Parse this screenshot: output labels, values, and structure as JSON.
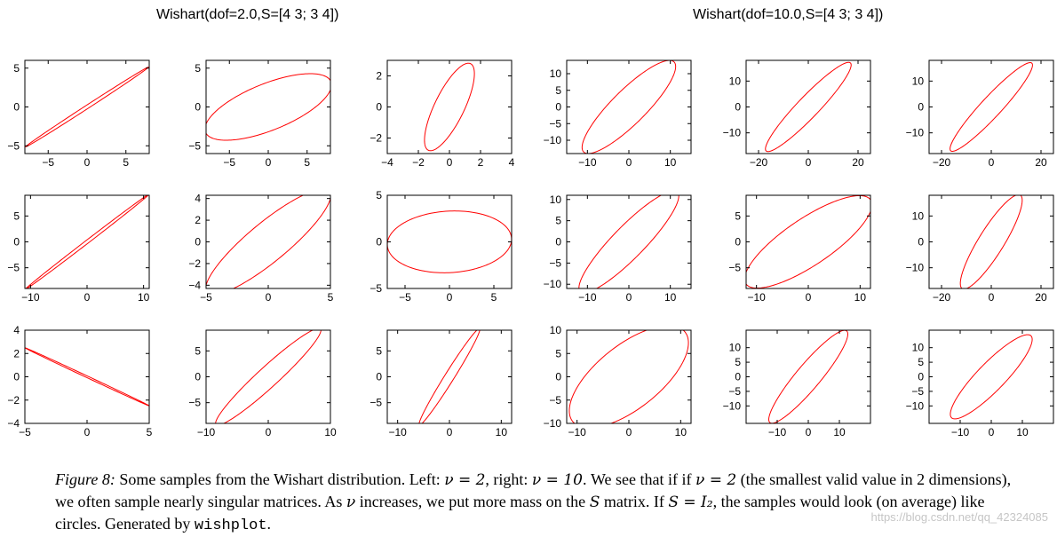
{
  "titles": {
    "left": "Wishart(dof=2.0,S=[4 3; 3 4])",
    "right": "Wishart(dof=10.0,S=[4 3; 3 4])"
  },
  "caption": {
    "label": "Figure 8:",
    "p1": " Some samples from the Wishart distribution. Left: ",
    "m1": "ν = 2",
    "p2": ", right: ",
    "m2": "ν = 10",
    "p3": ". We see that if if ",
    "m3": "ν = 2",
    "p4": " (the smallest valid value in 2 dimensions), we often sample nearly singular matrices. As ",
    "m4": "ν",
    "p5": " increases, we put more mass on the ",
    "m5": "S",
    "p6": " matrix. If ",
    "m6": "S = I₂",
    "p7": ", the samples would look (on average) like circles. Generated by ",
    "code": "wishplot",
    "p8": "."
  },
  "watermark": "https://blog.csdn.net/qq_42324085",
  "style": {
    "curve_color": "#ff0000",
    "axis_color": "#000000"
  },
  "chart_data": [
    {
      "type": "line",
      "name": "r1c1",
      "xlim": [
        -8,
        8
      ],
      "ylim": [
        -6,
        6
      ],
      "xticks": [
        -5,
        0,
        5
      ],
      "yticks": [
        -5,
        0,
        5
      ],
      "ellipse": {
        "a": 9.4,
        "b": 0.22,
        "angle_deg": 33
      }
    },
    {
      "type": "line",
      "name": "r1c2",
      "xlim": [
        -8,
        8
      ],
      "ylim": [
        -6,
        6
      ],
      "xticks": [
        -5,
        0,
        5
      ],
      "yticks": [
        -5,
        0,
        5
      ],
      "ellipse": {
        "a": 8.7,
        "b": 3.0,
        "angle_deg": 22
      }
    },
    {
      "type": "line",
      "name": "r1c3",
      "xlim": [
        -4,
        4
      ],
      "ylim": [
        -3,
        3
      ],
      "xticks": [
        -4,
        -2,
        0,
        2,
        4
      ],
      "yticks": [
        -2,
        0,
        2
      ],
      "ellipse": {
        "a": 3.1,
        "b": 0.95,
        "angle_deg": 64
      }
    },
    {
      "type": "line",
      "name": "r1c4",
      "xlim": [
        -15,
        15
      ],
      "ylim": [
        -14,
        14
      ],
      "xticks": [
        -10,
        0,
        10
      ],
      "yticks": [
        -10,
        -5,
        0,
        5,
        10
      ],
      "ellipse": {
        "a": 17.4,
        "b": 4.5,
        "angle_deg": 52
      }
    },
    {
      "type": "line",
      "name": "r1c5",
      "xlim": [
        -25,
        25
      ],
      "ylim": [
        -18,
        18
      ],
      "xticks": [
        -20,
        0,
        20
      ],
      "yticks": [
        -10,
        0,
        10
      ],
      "ellipse": {
        "a": 24.0,
        "b": 4.2,
        "angle_deg": 45
      }
    },
    {
      "type": "line",
      "name": "r1c6",
      "xlim": [
        -25,
        25
      ],
      "ylim": [
        -18,
        18
      ],
      "xticks": [
        -20,
        0,
        20
      ],
      "yticks": [
        -10,
        0,
        10
      ],
      "ellipse": {
        "a": 23.5,
        "b": 4.0,
        "angle_deg": 46
      }
    },
    {
      "type": "line",
      "name": "r2c1",
      "xlim": [
        -11,
        11
      ],
      "ylim": [
        -9,
        9
      ],
      "xticks": [
        -10,
        0,
        10
      ],
      "yticks": [
        -5,
        0,
        5
      ],
      "ellipse": {
        "a": 14.3,
        "b": 0.3,
        "angle_deg": 40
      }
    },
    {
      "type": "line",
      "name": "r2c2",
      "xlim": [
        -5,
        5
      ],
      "ylim": [
        -4.3,
        4.3
      ],
      "xticks": [
        -5,
        0,
        5
      ],
      "yticks": [
        -4,
        -2,
        0,
        2,
        4
      ],
      "ellipse": {
        "a": 6.8,
        "b": 1.7,
        "angle_deg": 44
      }
    },
    {
      "type": "line",
      "name": "r2c3",
      "xlim": [
        -7,
        7
      ],
      "ylim": [
        -5,
        5
      ],
      "xticks": [
        -5,
        0,
        5
      ],
      "yticks": [
        -5,
        0,
        5
      ],
      "ellipse": {
        "a": 7.0,
        "b": 3.3,
        "angle_deg": 3
      }
    },
    {
      "type": "line",
      "name": "r2c4",
      "xlim": [
        -15,
        15
      ],
      "ylim": [
        -11,
        11
      ],
      "xticks": [
        -10,
        0,
        10
      ],
      "yticks": [
        -10,
        -5,
        0,
        5,
        10
      ],
      "ellipse": {
        "a": 16.6,
        "b": 3.8,
        "angle_deg": 45
      }
    },
    {
      "type": "line",
      "name": "r2c5",
      "xlim": [
        -12,
        12
      ],
      "ylim": [
        -9,
        9
      ],
      "xticks": [
        -10,
        0,
        10
      ],
      "yticks": [
        -5,
        0,
        5
      ],
      "ellipse": {
        "a": 14.5,
        "b": 4.5,
        "angle_deg": 34
      }
    },
    {
      "type": "line",
      "name": "r2c6",
      "xlim": [
        -25,
        25
      ],
      "ylim": [
        -18,
        18
      ],
      "xticks": [
        -20,
        0,
        20
      ],
      "yticks": [
        -10,
        0,
        10
      ],
      "ellipse": {
        "a": 21.5,
        "b": 5.0,
        "angle_deg": 57
      }
    },
    {
      "type": "line",
      "name": "r3c1",
      "xlim": [
        -5,
        5
      ],
      "ylim": [
        -4,
        4
      ],
      "xticks": [
        -5,
        0,
        5
      ],
      "yticks": [
        -4,
        -2,
        0,
        2,
        4
      ],
      "ellipse": {
        "a": 5.6,
        "b": 0.07,
        "angle_deg": -26.5
      }
    },
    {
      "type": "line",
      "name": "r3c2",
      "xlim": [
        -10,
        10
      ],
      "ylim": [
        -9,
        9
      ],
      "xticks": [
        -10,
        0,
        10
      ],
      "yticks": [
        -5,
        0,
        5
      ],
      "ellipse": {
        "a": 12.5,
        "b": 1.8,
        "angle_deg": 48
      }
    },
    {
      "type": "line",
      "name": "r3c3",
      "xlim": [
        -12,
        12
      ],
      "ylim": [
        -9,
        9
      ],
      "xticks": [
        -10,
        0,
        10
      ],
      "yticks": [
        -5,
        0,
        5
      ],
      "ellipse": {
        "a": 11.0,
        "b": 0.9,
        "angle_deg": 58
      }
    },
    {
      "type": "line",
      "name": "r3c4",
      "xlim": [
        -12,
        12
      ],
      "ylim": [
        -10,
        10
      ],
      "xticks": [
        -10,
        0,
        10
      ],
      "yticks": [
        -10,
        -5,
        0,
        5,
        10
      ],
      "ellipse": {
        "a": 14.5,
        "b": 6.5,
        "angle_deg": 43
      }
    },
    {
      "type": "line",
      "name": "r3c5",
      "xlim": [
        -20,
        20
      ],
      "ylim": [
        -16,
        16
      ],
      "xticks": [
        -10,
        0,
        10
      ],
      "yticks": [
        -10,
        -5,
        0,
        5,
        10
      ],
      "ellipse": {
        "a": 20.0,
        "b": 4.0,
        "angle_deg": 52
      }
    },
    {
      "type": "line",
      "name": "r3c6",
      "xlim": [
        -20,
        20
      ],
      "ylim": [
        -16,
        16
      ],
      "xticks": [
        -10,
        0,
        10
      ],
      "yticks": [
        -10,
        -5,
        0,
        5,
        10
      ],
      "ellipse": {
        "a": 19.0,
        "b": 4.6,
        "angle_deg": 48
      }
    }
  ]
}
